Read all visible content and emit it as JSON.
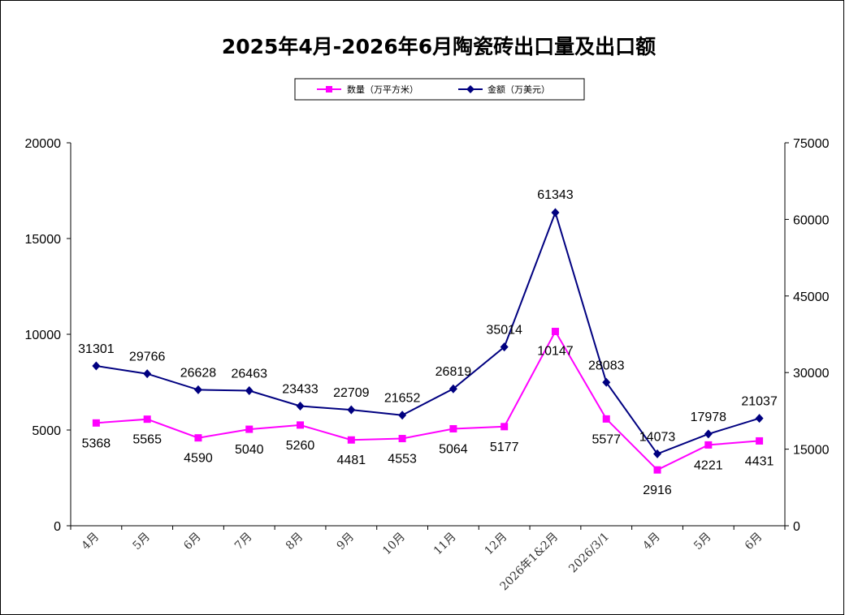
{
  "chart_data": {
    "type": "line",
    "title": "2025年4月-2026年6月陶瓷砖出口量及出口额",
    "categories": [
      "4月",
      "5月",
      "6月",
      "7月",
      "8月",
      "9月",
      "10月",
      "11月",
      "12月",
      "2026年1&2月",
      "2026/3/1",
      "4月",
      "5月",
      "6月"
    ],
    "series": [
      {
        "name": "数量（万平方米）",
        "axis": "left",
        "color": "#ff00ff",
        "marker": "square",
        "values": [
          5368,
          5565,
          4590,
          5040,
          5260,
          4481,
          4553,
          5064,
          5177,
          10147,
          5577,
          2916,
          4221,
          4431
        ]
      },
      {
        "name": "金额（万美元）",
        "axis": "right",
        "color": "#000080",
        "marker": "diamond",
        "values": [
          31301,
          29766,
          26628,
          26463,
          23433,
          22709,
          21652,
          26819,
          35014,
          61343,
          28083,
          14073,
          17978,
          21037
        ]
      }
    ],
    "y_left": {
      "min": 0,
      "max": 20000,
      "ticks": [
        0,
        5000,
        10000,
        15000,
        20000
      ]
    },
    "y_right": {
      "min": 0,
      "max": 75000,
      "ticks": [
        0,
        15000,
        30000,
        45000,
        60000,
        75000
      ]
    },
    "legend_position": "top-center",
    "grid": false
  }
}
